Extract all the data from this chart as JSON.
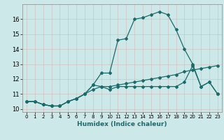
{
  "xlabel": "Humidex (Indice chaleur)",
  "bg_color": "#cce8e8",
  "grid_color": "#b8d4d4",
  "line_color": "#1a6b6b",
  "xlim": [
    -0.5,
    23.5
  ],
  "ylim": [
    9.8,
    17.0
  ],
  "yticks": [
    10,
    11,
    12,
    13,
    14,
    15,
    16
  ],
  "xticks": [
    0,
    1,
    2,
    3,
    4,
    5,
    6,
    7,
    8,
    9,
    10,
    11,
    12,
    13,
    14,
    15,
    16,
    17,
    18,
    19,
    20,
    21,
    22,
    23
  ],
  "series1_x": [
    0,
    1,
    2,
    3,
    4,
    5,
    6,
    7,
    8,
    9,
    10,
    11,
    12,
    13,
    14,
    15,
    16,
    17,
    18,
    19,
    20,
    21,
    22,
    23
  ],
  "series1_y": [
    10.5,
    10.5,
    10.3,
    10.2,
    10.2,
    10.5,
    10.7,
    11.0,
    11.3,
    11.5,
    11.5,
    11.6,
    11.7,
    11.8,
    11.9,
    12.0,
    12.1,
    12.2,
    12.3,
    12.5,
    12.6,
    12.7,
    12.8,
    12.9
  ],
  "series2_x": [
    0,
    1,
    2,
    3,
    4,
    5,
    6,
    7,
    8,
    9,
    10,
    11,
    12,
    13,
    14,
    15,
    16,
    17,
    18,
    19,
    20,
    21,
    22,
    23
  ],
  "series2_y": [
    10.5,
    10.5,
    10.3,
    10.2,
    10.2,
    10.5,
    10.7,
    11.0,
    11.6,
    12.4,
    12.4,
    14.6,
    14.7,
    16.0,
    16.1,
    16.3,
    16.5,
    16.3,
    15.3,
    14.0,
    13.0,
    11.5,
    11.8,
    11.0
  ],
  "series3_x": [
    0,
    1,
    2,
    3,
    4,
    5,
    6,
    7,
    8,
    9,
    10,
    11,
    12,
    13,
    14,
    15,
    16,
    17,
    18,
    19,
    20,
    21,
    22,
    23
  ],
  "series3_y": [
    10.5,
    10.5,
    10.3,
    10.2,
    10.2,
    10.5,
    10.7,
    11.0,
    11.6,
    11.5,
    11.3,
    11.5,
    11.5,
    11.5,
    11.5,
    11.5,
    11.5,
    11.5,
    11.5,
    11.8,
    12.9,
    11.5,
    11.8,
    11.0
  ]
}
